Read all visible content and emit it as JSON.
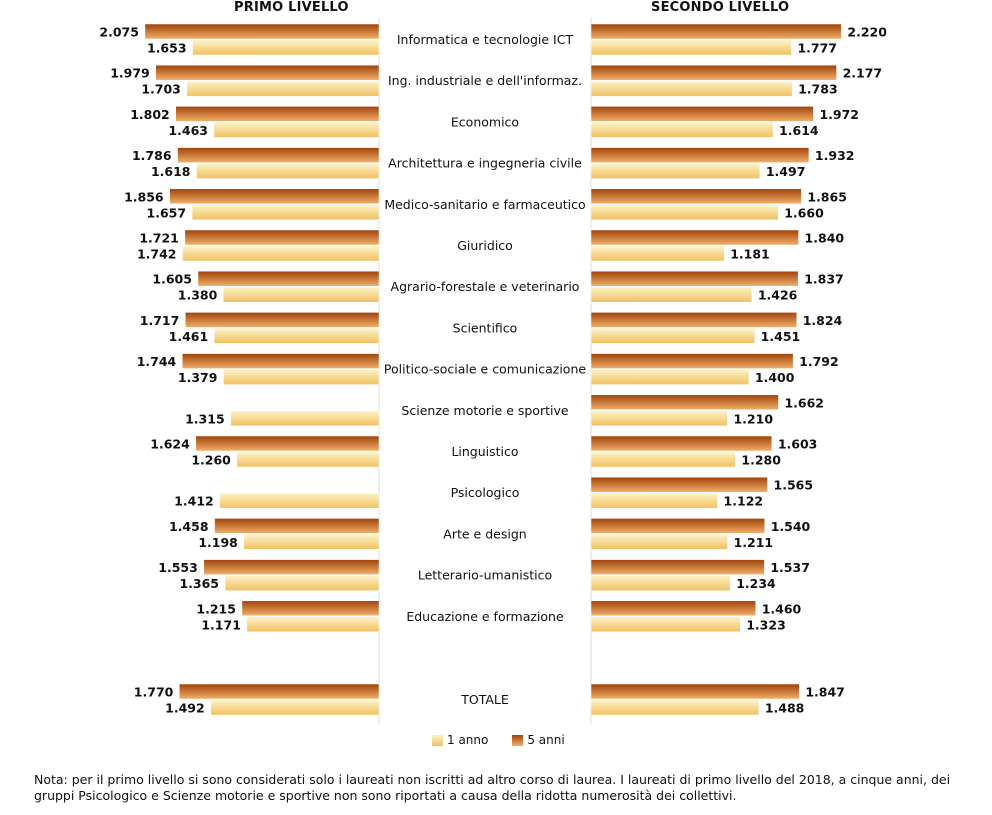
{
  "titles": {
    "left": "PRIMO LIVELLO",
    "right": "SECONDO LIVELLO"
  },
  "legend": {
    "one_year": "1 anno",
    "five_years": "5 anni"
  },
  "colors": {
    "one_year_dark": "#f0c060",
    "one_year_light": "#fdf3c8",
    "five_years_dark": "#a0420a",
    "five_years_light": "#f2b06a"
  },
  "note": "Nota: per il primo livello si sono considerati solo i laureati non iscritti ad altro corso di laurea. I laureati di primo livello del 2018, a cinque anni, dei gruppi Psicologico e Scienze motorie e sportive non sono riportati a causa della ridotta numerosità dei collettivi.",
  "chart_data": {
    "type": "bar",
    "orientation": "horizontal",
    "categories": [
      "Informatica e tecnologie ICT",
      "Ing. industriale e dell'informaz.",
      "Economico",
      "Architettura e ingegneria civile",
      "Medico-sanitario e farmaceutico",
      "Giuridico",
      "Agrario-forestale e veterinario",
      "Scientifico",
      "Politico-sociale e comunicazione",
      "Scienze motorie e sportive",
      "Linguistico",
      "Psicologico",
      "Arte e design",
      "Letterario-umanistico",
      "Educazione e formazione",
      "TOTALE"
    ],
    "panels": [
      {
        "name": "PRIMO LIVELLO",
        "series": [
          {
            "name": "5 anni",
            "values": [
              2075,
              1979,
              1802,
              1786,
              1856,
              1721,
              1605,
              1717,
              1744,
              null,
              1624,
              null,
              1458,
              1553,
              1215,
              1770
            ],
            "labels": [
              "2.075",
              "1.979",
              "1.802",
              "1.786",
              "1.856",
              "1.721",
              "1.605",
              "1.717",
              "1.744",
              "",
              "1.624",
              "",
              "1.458",
              "1.553",
              "1.215",
              "1.770"
            ]
          },
          {
            "name": "1 anno",
            "values": [
              1653,
              1703,
              1463,
              1618,
              1657,
              1742,
              1380,
              1461,
              1379,
              1315,
              1260,
              1412,
              1198,
              1365,
              1171,
              1492
            ],
            "labels": [
              "1.653",
              "1.703",
              "1.463",
              "1.618",
              "1.657",
              "1.742",
              "1.380",
              "1.461",
              "1.379",
              "1.315",
              "1.260",
              "1.412",
              "1.198",
              "1.365",
              "1.171",
              "1.492"
            ]
          }
        ]
      },
      {
        "name": "SECONDO LIVELLO",
        "series": [
          {
            "name": "5 anni",
            "values": [
              2220,
              2177,
              1972,
              1932,
              1865,
              1840,
              1837,
              1824,
              1792,
              1662,
              1603,
              1565,
              1540,
              1537,
              1460,
              1847
            ],
            "labels": [
              "2.220",
              "2.177",
              "1.972",
              "1.932",
              "1.865",
              "1.840",
              "1.837",
              "1.824",
              "1.792",
              "1.662",
              "1.603",
              "1.565",
              "1.540",
              "1.537",
              "1.460",
              "1.847"
            ]
          },
          {
            "name": "1 anno",
            "values": [
              1777,
              1783,
              1614,
              1497,
              1660,
              1181,
              1426,
              1451,
              1400,
              1210,
              1280,
              1122,
              1211,
              1234,
              1323,
              1488
            ],
            "labels": [
              "1.777",
              "1.783",
              "1.614",
              "1.497",
              "1.660",
              "1.181",
              "1.426",
              "1.451",
              "1.400",
              "1.210",
              "1.280",
              "1.122",
              "1.211",
              "1.234",
              "1.323",
              "1.488"
            ]
          }
        ]
      }
    ],
    "xlim": [
      0,
      2300
    ],
    "grid": false,
    "legend_position": "bottom-center"
  }
}
